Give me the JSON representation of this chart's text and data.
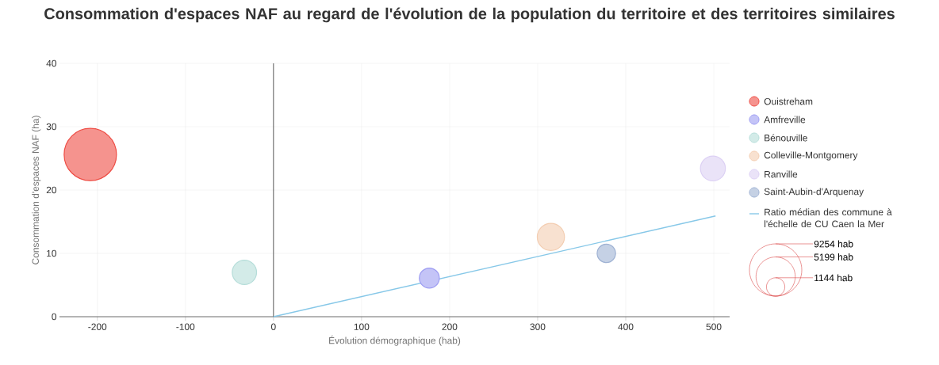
{
  "chart_data": {
    "type": "bubble",
    "title": "Consommation d'espaces NAF au regard de l'évolution de la population du territoire et des territoires similaires",
    "xlabel": "Évolution démographique (hab)",
    "ylabel": "Consommation d'espaces NAF (ha)",
    "xlim": [
      -243,
      518
    ],
    "xticks": [
      -200,
      -100,
      0,
      100,
      200,
      300,
      400,
      500
    ],
    "ylim": [
      0,
      40
    ],
    "yticks": [
      0,
      10,
      20,
      30,
      40
    ],
    "grid": true,
    "legend": "right",
    "size_legend": [
      {
        "value": 1144,
        "label": "1144 hab"
      },
      {
        "value": 5199,
        "label": "5199 hab"
      },
      {
        "value": 9254,
        "label": "9254 hab"
      }
    ],
    "ref_lines": [
      {
        "axis": "x",
        "value": 0,
        "color": "#333333"
      }
    ],
    "series": [
      {
        "name": "Ouistreham",
        "color": "#ee4b43",
        "x": [
          -208
        ],
        "values": [
          25.6
        ],
        "sizes": [
          9254
        ]
      },
      {
        "name": "Amfreville",
        "color": "#9d9cf2",
        "x": [
          177
        ],
        "values": [
          6.1
        ],
        "sizes": [
          1350
        ]
      },
      {
        "name": "Bénouville",
        "color": "#b5ddd9",
        "x": [
          -33
        ],
        "values": [
          7.0
        ],
        "sizes": [
          2000
        ]
      },
      {
        "name": "Colleville-Montgomery",
        "color": "#f3cdb1",
        "x": [
          315
        ],
        "values": [
          12.6
        ],
        "sizes": [
          2500
        ]
      },
      {
        "name": "Ranville",
        "color": "#dcd0f4",
        "x": [
          499
        ],
        "values": [
          23.4
        ],
        "sizes": [
          2100
        ]
      },
      {
        "name": "Saint-Aubin-d'Arquenay",
        "color": "#9fb2d3",
        "x": [
          378
        ],
        "values": [
          10.0
        ],
        "sizes": [
          1150
        ]
      },
      {
        "name": "Ratio médian des commune à l'échelle de CU Caen la Mer",
        "type": "line",
        "color": "#87c8e8",
        "x": [
          0,
          502
        ],
        "values": [
          0,
          15.9
        ]
      }
    ]
  }
}
